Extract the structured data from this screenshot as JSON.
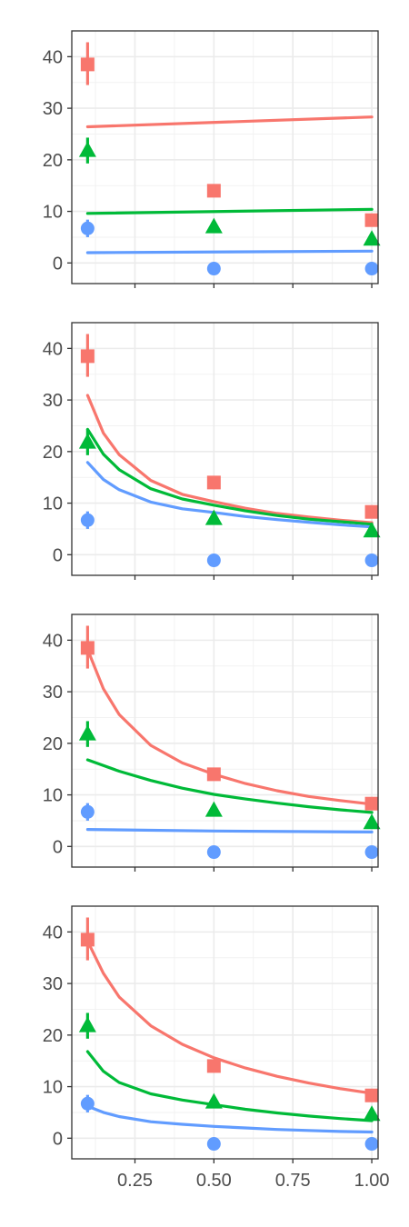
{
  "chart_data": {
    "type": "scatter",
    "x_ticks": [
      "0.25",
      "0.50",
      "0.75",
      "1.00"
    ],
    "x_tick_values": [
      0.25,
      0.5,
      0.75,
      1.0
    ],
    "y_ticks": [
      "0",
      "10",
      "20",
      "30",
      "40"
    ],
    "y_tick_values": [
      0,
      10,
      20,
      30,
      40
    ],
    "xlim": [
      0.05,
      1.02
    ],
    "ylim": [
      -4,
      45
    ],
    "grid": true,
    "colors": {
      "red": "#F8766D",
      "green": "#00BA38",
      "blue": "#619CFF"
    },
    "points": [
      {
        "color": "#F8766D",
        "shape": "square",
        "x": [
          0.1,
          0.5,
          1.0
        ],
        "y": [
          38.5,
          14.0,
          8.3
        ],
        "err_low": [
          34.5,
          null,
          null
        ],
        "err_high": [
          42.8,
          null,
          null
        ]
      },
      {
        "color": "#00BA38",
        "shape": "triangle",
        "x": [
          0.1,
          0.5,
          1.0
        ],
        "y": [
          21.8,
          7.0,
          4.6
        ],
        "err_low": [
          19.3,
          null,
          null
        ],
        "err_high": [
          24.3,
          null,
          null
        ]
      },
      {
        "color": "#619CFF",
        "shape": "circle",
        "x": [
          0.1,
          0.5,
          1.0
        ],
        "y": [
          6.7,
          -1.1,
          -1.1
        ],
        "err_low": [
          5.0,
          null,
          null
        ],
        "err_high": [
          8.4,
          null,
          null
        ]
      }
    ],
    "panels": [
      {
        "fits": [
          {
            "color": "#F8766D",
            "x": [
              0.1,
              1.0
            ],
            "y": [
              26.4,
              28.3
            ]
          },
          {
            "color": "#00BA38",
            "x": [
              0.1,
              1.0
            ],
            "y": [
              9.6,
              10.4
            ]
          },
          {
            "color": "#619CFF",
            "x": [
              0.1,
              1.0
            ],
            "y": [
              2.0,
              2.3
            ]
          }
        ]
      },
      {
        "fits": [
          {
            "color": "#F8766D",
            "x": [
              0.1,
              0.15,
              0.2,
              0.3,
              0.4,
              0.5,
              0.6,
              0.7,
              0.8,
              0.9,
              1.0
            ],
            "y": [
              30.9,
              23.6,
              19.4,
              14.4,
              11.7,
              10.3,
              9.0,
              8.0,
              7.3,
              6.7,
              6.2
            ]
          },
          {
            "color": "#00BA38",
            "x": [
              0.1,
              0.15,
              0.2,
              0.3,
              0.4,
              0.5,
              0.6,
              0.7,
              0.8,
              0.9,
              1.0
            ],
            "y": [
              24.3,
              19.5,
              16.5,
              12.8,
              10.8,
              9.6,
              8.5,
              7.6,
              6.9,
              6.4,
              5.9
            ]
          },
          {
            "color": "#619CFF",
            "x": [
              0.1,
              0.15,
              0.2,
              0.3,
              0.4,
              0.5,
              0.6,
              0.7,
              0.8,
              0.9,
              1.0
            ],
            "y": [
              17.9,
              14.6,
              12.6,
              10.2,
              8.9,
              8.2,
              7.4,
              6.8,
              6.3,
              5.8,
              5.4
            ]
          }
        ]
      },
      {
        "fits": [
          {
            "color": "#F8766D",
            "x": [
              0.1,
              0.15,
              0.2,
              0.3,
              0.4,
              0.5,
              0.6,
              0.7,
              0.8,
              0.9,
              1.0
            ],
            "y": [
              38.2,
              30.6,
              25.6,
              19.6,
              16.2,
              14.0,
              12.2,
              10.8,
              9.7,
              8.9,
              8.2
            ]
          },
          {
            "color": "#00BA38",
            "x": [
              0.1,
              0.2,
              0.3,
              0.4,
              0.5,
              0.6,
              0.7,
              0.8,
              0.9,
              1.0
            ],
            "y": [
              16.8,
              14.6,
              12.8,
              11.3,
              10.1,
              9.2,
              8.4,
              7.7,
              7.1,
              6.6
            ]
          },
          {
            "color": "#619CFF",
            "x": [
              0.1,
              0.5,
              1.0
            ],
            "y": [
              3.3,
              3.0,
              2.8
            ]
          }
        ]
      },
      {
        "fits": [
          {
            "color": "#F8766D",
            "x": [
              0.1,
              0.15,
              0.2,
              0.3,
              0.4,
              0.5,
              0.6,
              0.7,
              0.8,
              0.9,
              1.0
            ],
            "y": [
              38.2,
              32.0,
              27.4,
              21.8,
              18.2,
              15.6,
              13.6,
              12.0,
              10.7,
              9.6,
              8.7
            ]
          },
          {
            "color": "#00BA38",
            "x": [
              0.1,
              0.15,
              0.2,
              0.3,
              0.4,
              0.5,
              0.6,
              0.7,
              0.8,
              0.9,
              1.0
            ],
            "y": [
              16.8,
              13.0,
              10.8,
              8.6,
              7.4,
              6.5,
              5.6,
              4.9,
              4.3,
              3.8,
              3.4
            ]
          },
          {
            "color": "#619CFF",
            "x": [
              0.1,
              0.15,
              0.2,
              0.3,
              0.4,
              0.5,
              0.6,
              0.7,
              0.8,
              0.9,
              1.0
            ],
            "y": [
              6.2,
              5.0,
              4.2,
              3.2,
              2.7,
              2.3,
              2.0,
              1.7,
              1.5,
              1.3,
              1.2
            ]
          }
        ]
      }
    ]
  }
}
